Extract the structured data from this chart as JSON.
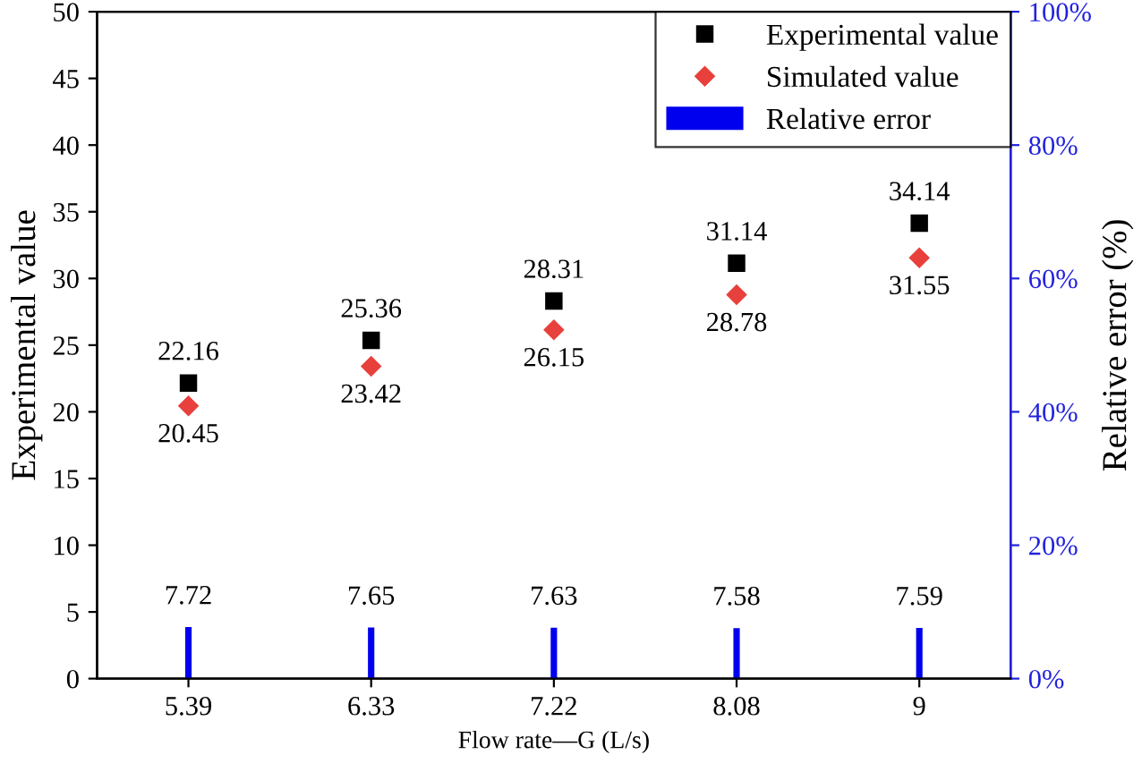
{
  "chart_data": {
    "type": "scatter",
    "xlabel": "Flow rate—G (L/s)",
    "ylabel": "Experimental value",
    "y2label": "Relative error (%)",
    "categories": [
      "5.39",
      "6.33",
      "7.22",
      "8.08",
      "9"
    ],
    "series": [
      {
        "name": "Experimental value",
        "marker": "square",
        "color": "#000000",
        "values": [
          22.16,
          25.36,
          28.31,
          31.14,
          34.14
        ]
      },
      {
        "name": "Simulated value",
        "marker": "diamond",
        "color": "#e8403c",
        "values": [
          20.45,
          23.42,
          26.15,
          28.78,
          31.55
        ]
      },
      {
        "name": "Relative error",
        "type": "bar",
        "axis": "y2",
        "color": "#0000ee",
        "values": [
          7.72,
          7.65,
          7.63,
          7.58,
          7.59
        ]
      }
    ],
    "ylim": [
      0,
      50
    ],
    "yticks": [
      0,
      5,
      10,
      15,
      20,
      25,
      30,
      35,
      40,
      45,
      50
    ],
    "y2lim": [
      0,
      100
    ],
    "y2ticks": [
      {
        "value": 0,
        "label": "0%"
      },
      {
        "value": 20,
        "label": "20%"
      },
      {
        "value": 40,
        "label": "40%"
      },
      {
        "value": 60,
        "label": "60%"
      },
      {
        "value": 80,
        "label": "80%"
      },
      {
        "value": 100,
        "label": "100%"
      }
    ],
    "data_labels": true,
    "legend": "top right",
    "grid": false
  }
}
